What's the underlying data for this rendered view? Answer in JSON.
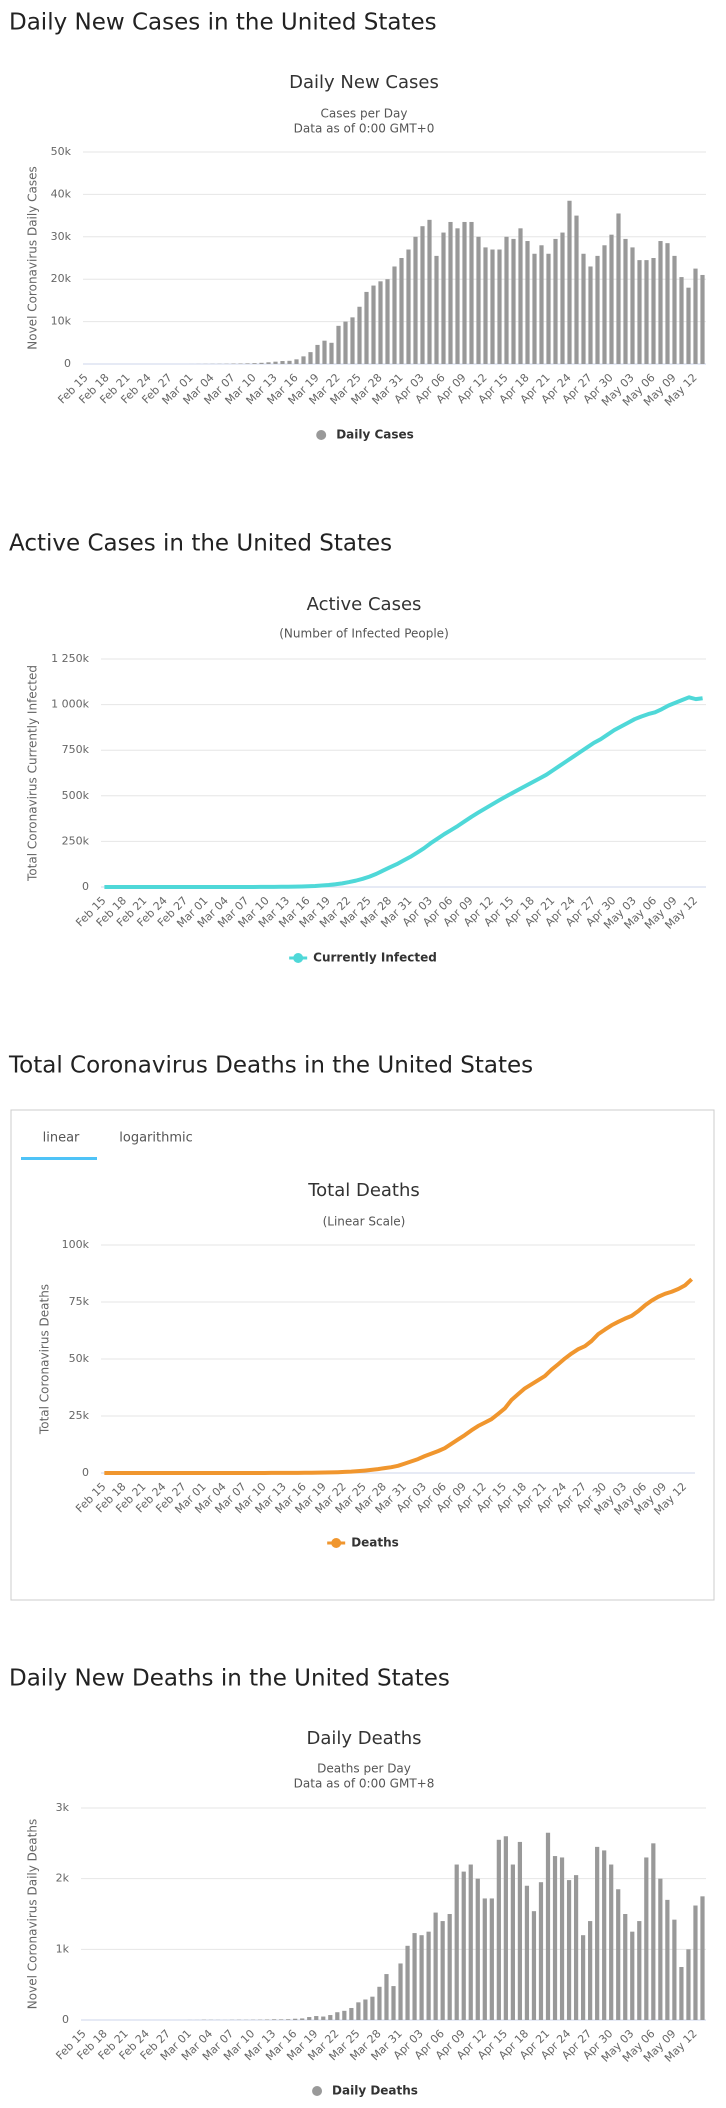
{
  "headings": [
    "Daily New Cases in the United States",
    "Active Cases in the United States",
    "Total Coronavirus Deaths in the United States",
    "Daily New Deaths in the United States"
  ],
  "tabs": [
    "linear",
    "logarithmic"
  ],
  "chart_data": [
    {
      "type": "bar",
      "title": "Daily New Cases",
      "subtitle": [
        "Cases per Day",
        "Data as of 0:00 GMT+0"
      ],
      "y_label": "Novel Coronavirus Daily Cases",
      "categories": [
        "Feb 15",
        null,
        null,
        "Feb 18",
        null,
        null,
        "Feb 21",
        null,
        null,
        "Feb 24",
        null,
        null,
        "Feb 27",
        null,
        null,
        "Mar 01",
        null,
        null,
        "Mar 04",
        null,
        null,
        "Mar 07",
        null,
        null,
        "Mar 10",
        null,
        null,
        "Mar 13",
        null,
        null,
        "Mar 16",
        null,
        null,
        "Mar 19",
        null,
        null,
        "Mar 22",
        null,
        null,
        "Mar 25",
        null,
        null,
        "Mar 28",
        null,
        null,
        "Mar 31",
        null,
        null,
        "Apr 03",
        null,
        null,
        "Apr 06",
        null,
        null,
        "Apr 09",
        null,
        null,
        "Apr 12",
        null,
        null,
        "Apr 15",
        null,
        null,
        "Apr 18",
        null,
        null,
        "Apr 21",
        null,
        null,
        "Apr 24",
        null,
        null,
        "Apr 27",
        null,
        null,
        "Apr 30",
        null,
        null,
        "May 03",
        null,
        null,
        "May 06",
        null,
        null,
        "May 09",
        null,
        null,
        "May 12",
        null
      ],
      "series": [
        {
          "name": "Daily Cases",
          "color": "#999999",
          "values": [
            0,
            0,
            0,
            0,
            0,
            0,
            0,
            0,
            0,
            0,
            0,
            0,
            0,
            0,
            0,
            10,
            20,
            30,
            40,
            50,
            60,
            100,
            120,
            150,
            200,
            280,
            400,
            550,
            700,
            750,
            1100,
            1800,
            2800,
            4500,
            5500,
            5000,
            9000,
            10000,
            11000,
            13500,
            17000,
            18500,
            19500,
            20000,
            23000,
            25000,
            27000,
            30000,
            32500,
            34000,
            25500,
            31000,
            33500,
            32000,
            33500,
            33500,
            30000,
            27500,
            27000,
            27000,
            30000,
            29500,
            32000,
            29000,
            26000,
            28000,
            26000,
            29500,
            31000,
            38500,
            35000,
            26000,
            23000,
            25500,
            28000,
            30500,
            35500,
            29500,
            27500,
            24500,
            24500,
            25000,
            29000,
            28500,
            25500,
            20500,
            18000,
            22500,
            21000
          ]
        }
      ],
      "ylim": [
        0,
        50000
      ],
      "yticks": [
        0,
        {
          "value": 10000,
          "label": "10k"
        },
        {
          "value": 20000,
          "label": "20k"
        },
        {
          "value": 30000,
          "label": "30k"
        },
        {
          "value": 40000,
          "label": "40k"
        },
        {
          "value": 50000,
          "label": "50k"
        }
      ],
      "grid": true,
      "legend": "bottom"
    },
    {
      "type": "line",
      "title": "Active Cases",
      "subtitle": [
        "(Number of Infected People)"
      ],
      "y_label": "Total Coronavirus Currently Infected",
      "categories": [
        "Feb 15",
        null,
        null,
        "Feb 18",
        null,
        null,
        "Feb 21",
        null,
        null,
        "Feb 24",
        null,
        null,
        "Feb 27",
        null,
        null,
        "Mar 01",
        null,
        null,
        "Mar 04",
        null,
        null,
        "Mar 07",
        null,
        null,
        "Mar 10",
        null,
        null,
        "Mar 13",
        null,
        null,
        "Mar 16",
        null,
        null,
        "Mar 19",
        null,
        null,
        "Mar 22",
        null,
        null,
        "Mar 25",
        null,
        null,
        "Mar 28",
        null,
        null,
        "Mar 31",
        null,
        null,
        "Apr 03",
        null,
        null,
        "Apr 06",
        null,
        null,
        "Apr 09",
        null,
        null,
        "Apr 12",
        null,
        null,
        "Apr 15",
        null,
        null,
        "Apr 18",
        null,
        null,
        "Apr 21",
        null,
        null,
        "Apr 24",
        null,
        null,
        "Apr 27",
        null,
        null,
        "Apr 30",
        null,
        null,
        "May 03",
        null,
        null,
        "May 06",
        null,
        null,
        "May 09",
        null,
        null,
        "May 12",
        null
      ],
      "series": [
        {
          "name": "Currently Infected",
          "color": "#4fd8d8",
          "values": [
            10,
            10,
            10,
            10,
            10,
            10,
            10,
            10,
            10,
            10,
            10,
            20,
            20,
            20,
            20,
            50,
            60,
            80,
            100,
            130,
            180,
            250,
            350,
            450,
            600,
            800,
            1100,
            1600,
            2200,
            3000,
            4000,
            5500,
            8000,
            11000,
            15000,
            20000,
            27000,
            35000,
            45000,
            57000,
            72000,
            90000,
            108000,
            125000,
            145000,
            165000,
            188000,
            212000,
            240000,
            265000,
            290000,
            312000,
            335000,
            360000,
            385000,
            408000,
            430000,
            452000,
            474000,
            495000,
            515000,
            535000,
            555000,
            575000,
            595000,
            615000,
            640000,
            665000,
            690000,
            715000,
            740000,
            765000,
            790000,
            810000,
            835000,
            860000,
            880000,
            900000,
            920000,
            935000,
            948000,
            958000,
            975000,
            995000,
            1010000,
            1025000,
            1040000,
            1030000,
            1035000
          ]
        }
      ],
      "ylim": [
        0,
        1250000
      ],
      "yticks": [
        0,
        {
          "value": 250000,
          "label": "250k"
        },
        {
          "value": 500000,
          "label": "500k"
        },
        {
          "value": 750000,
          "label": "750k"
        },
        {
          "value": 1000000,
          "label": "1 000k"
        },
        {
          "value": 1250000,
          "label": "1 250k"
        }
      ],
      "grid": true,
      "legend": "bottom"
    },
    {
      "type": "line",
      "title": "Total Deaths",
      "subtitle": [
        "(Linear Scale)"
      ],
      "y_label": "Total Coronavirus Deaths",
      "categories": [
        "Feb 15",
        null,
        null,
        "Feb 18",
        null,
        null,
        "Feb 21",
        null,
        null,
        "Feb 24",
        null,
        null,
        "Feb 27",
        null,
        null,
        "Mar 01",
        null,
        null,
        "Mar 04",
        null,
        null,
        "Mar 07",
        null,
        null,
        "Mar 10",
        null,
        null,
        "Mar 13",
        null,
        null,
        "Mar 16",
        null,
        null,
        "Mar 19",
        null,
        null,
        "Mar 22",
        null,
        null,
        "Mar 25",
        null,
        null,
        "Mar 28",
        null,
        null,
        "Mar 31",
        null,
        null,
        "Apr 03",
        null,
        null,
        "Apr 06",
        null,
        null,
        "Apr 09",
        null,
        null,
        "Apr 12",
        null,
        null,
        "Apr 15",
        null,
        null,
        "Apr 18",
        null,
        null,
        "Apr 21",
        null,
        null,
        "Apr 24",
        null,
        null,
        "Apr 27",
        null,
        null,
        "Apr 30",
        null,
        null,
        "May 03",
        null,
        null,
        "May 06",
        null,
        null,
        "May 09",
        null,
        null,
        "May 12",
        null
      ],
      "series": [
        {
          "name": "Deaths",
          "color": "#f0962e",
          "values": [
            0,
            0,
            0,
            0,
            0,
            0,
            0,
            0,
            0,
            0,
            0,
            0,
            0,
            0,
            0,
            1,
            2,
            6,
            9,
            11,
            12,
            15,
            19,
            22,
            26,
            31,
            38,
            48,
            57,
            68,
            86,
            108,
            150,
            206,
            255,
            340,
            470,
            590,
            800,
            1050,
            1350,
            1700,
            2150,
            2550,
            3150,
            4100,
            5100,
            6100,
            7400,
            8500,
            9600,
            10900,
            12800,
            14700,
            16600,
            18700,
            20600,
            22100,
            23600,
            25900,
            28300,
            32000,
            34600,
            37100,
            38900,
            40700,
            42500,
            45300,
            47700,
            50200,
            52400,
            54300,
            55600,
            57900,
            60900,
            62900,
            64800,
            66300,
            67700,
            68900,
            71000,
            73500,
            75600,
            77300,
            78600,
            79500,
            80700,
            82300,
            85000
          ]
        }
      ],
      "ylim": [
        0,
        100000
      ],
      "yticks": [
        0,
        {
          "value": 25000,
          "label": "25k"
        },
        {
          "value": 50000,
          "label": "50k"
        },
        {
          "value": 75000,
          "label": "75k"
        },
        {
          "value": 100000,
          "label": "100k"
        }
      ],
      "grid": true,
      "legend": "bottom"
    },
    {
      "type": "bar",
      "title": "Daily Deaths",
      "subtitle": [
        "Deaths per Day",
        "Data as of 0:00 GMT+8"
      ],
      "y_label": "Novel Coronavirus Daily Deaths",
      "categories": [
        "Feb 15",
        null,
        null,
        "Feb 18",
        null,
        null,
        "Feb 21",
        null,
        null,
        "Feb 24",
        null,
        null,
        "Feb 27",
        null,
        null,
        "Mar 01",
        null,
        null,
        "Mar 04",
        null,
        null,
        "Mar 07",
        null,
        null,
        "Mar 10",
        null,
        null,
        "Mar 13",
        null,
        null,
        "Mar 16",
        null,
        null,
        "Mar 19",
        null,
        null,
        "Mar 22",
        null,
        null,
        "Mar 25",
        null,
        null,
        "Mar 28",
        null,
        null,
        "Mar 31",
        null,
        null,
        "Apr 03",
        null,
        null,
        "Apr 06",
        null,
        null,
        "Apr 09",
        null,
        null,
        "Apr 12",
        null,
        null,
        "Apr 15",
        null,
        null,
        "Apr 18",
        null,
        null,
        "Apr 21",
        null,
        null,
        "Apr 24",
        null,
        null,
        "Apr 27",
        null,
        null,
        "Apr 30",
        null,
        null,
        "May 03",
        null,
        null,
        "May 06",
        null,
        null,
        "May 09",
        null,
        null,
        "May 12",
        null
      ],
      "series": [
        {
          "name": "Daily Deaths",
          "color": "#999999",
          "values": [
            0,
            0,
            0,
            0,
            0,
            0,
            0,
            0,
            0,
            0,
            0,
            0,
            0,
            0,
            0,
            1,
            1,
            4,
            3,
            2,
            1,
            3,
            4,
            3,
            4,
            5,
            7,
            10,
            9,
            11,
            18,
            22,
            42,
            56,
            49,
            70,
            110,
            130,
            170,
            250,
            290,
            330,
            470,
            650,
            480,
            800,
            1050,
            1230,
            1200,
            1250,
            1520,
            1400,
            1500,
            2200,
            2100,
            2200,
            2000,
            1720,
            1720,
            2550,
            2600,
            2200,
            2520,
            1900,
            1540,
            1950,
            2650,
            2320,
            2300,
            1980,
            2050,
            1200,
            1400,
            2450,
            2400,
            2200,
            1850,
            1500,
            1250,
            1400,
            2300,
            2500,
            2000,
            1700,
            1420,
            750,
            1000,
            1620,
            1750
          ]
        }
      ],
      "ylim": [
        0,
        3000
      ],
      "yticks": [
        0,
        {
          "value": 1000,
          "label": "1k"
        },
        {
          "value": 2000,
          "label": "2k"
        },
        {
          "value": 3000,
          "label": "3k"
        }
      ],
      "grid": true,
      "legend": "bottom"
    }
  ]
}
